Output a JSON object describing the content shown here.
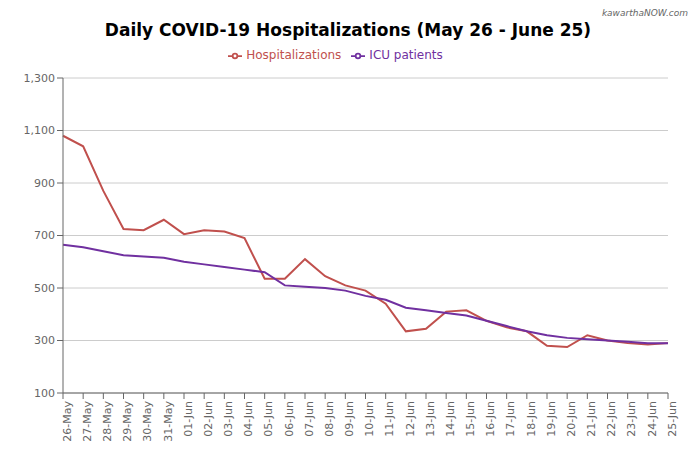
{
  "chart_data": {
    "type": "line",
    "title": "Daily COVID-19 Hospitalizations (May 26 - June 25)",
    "annotations": [
      "kawarthaNOW.com"
    ],
    "categories": [
      "26-May",
      "27-May",
      "28-May",
      "29-May",
      "30-May",
      "31-May",
      "01-Jun",
      "02-Jun",
      "03-Jun",
      "04-Jun",
      "05-Jun",
      "06-Jun",
      "07-Jun",
      "08-Jun",
      "09-Jun",
      "10-Jun",
      "11-Jun",
      "12-Jun",
      "13-Jun",
      "14-Jun",
      "15-Jun",
      "16-Jun",
      "17-Jun",
      "18-Jun",
      "19-Jun",
      "20-Jun",
      "21-Jun",
      "22-Jun",
      "23-Jun",
      "24-Jun",
      "25-Jun"
    ],
    "series": [
      {
        "name": "Hospitalizations",
        "color": "#c0504d",
        "values": [
          1080,
          1040,
          870,
          725,
          720,
          760,
          705,
          720,
          715,
          690,
          535,
          535,
          610,
          545,
          510,
          490,
          440,
          335,
          345,
          410,
          415,
          375,
          350,
          335,
          280,
          275,
          320,
          300,
          290,
          285,
          290
        ]
      },
      {
        "name": "ICU patients",
        "color": "#7030a0",
        "values": [
          665,
          655,
          640,
          625,
          620,
          615,
          600,
          590,
          580,
          570,
          560,
          510,
          505,
          500,
          490,
          470,
          455,
          425,
          415,
          405,
          395,
          375,
          355,
          335,
          320,
          310,
          305,
          300,
          295,
          290,
          290
        ]
      }
    ],
    "ylim": [
      100,
      1300
    ],
    "yticks": [
      100,
      300,
      500,
      700,
      900,
      {
        "value": 1100,
        "label": "1,100"
      },
      {
        "value": 1300,
        "label": "1,300"
      }
    ],
    "grid": true,
    "legend": "top"
  }
}
